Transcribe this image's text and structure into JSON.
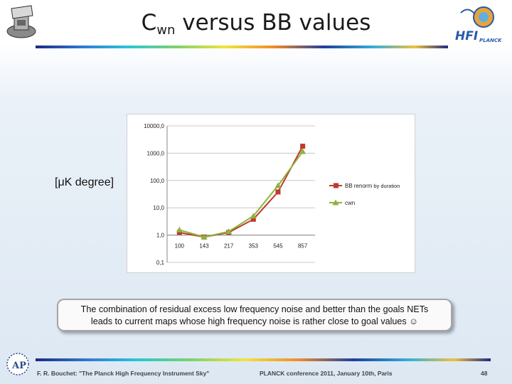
{
  "slide": {
    "title_main": "C",
    "title_sub": "wn",
    "title_rest": " versus BB values",
    "side_label": "[μK degree]",
    "callout_line1": "The combination of residual excess low frequency noise and better than the goals NETs",
    "callout_line2": "leads to current maps whose high frequency noise is rather close to goal values ☺",
    "footer_left": "F. R. Bouchet: \"The Planck High Frequency Instrument Sky\"",
    "footer_center": "PLANCK conference 2011, January 10th, Paris",
    "footer_right": "48",
    "logo_right_text": "HFI",
    "logo_right_sub": "PLANCK"
  },
  "chart_data": {
    "type": "line",
    "yscale": "log",
    "ylim": [
      0.1,
      10000
    ],
    "categories": [
      "100",
      "143",
      "217",
      "353",
      "545",
      "857"
    ],
    "ytick_labels": [
      "10000,0",
      "1000,0",
      "100,0",
      "10,0",
      "1,0",
      "0,1"
    ],
    "ytick_values": [
      10000,
      1000,
      100,
      10,
      1,
      0.1
    ],
    "grid": true,
    "legend_position": "right",
    "series": [
      {
        "name": "BB renorm",
        "name_suffix": "by duration",
        "color": "#c0392b",
        "marker": "square",
        "values": [
          1.25,
          0.85,
          1.25,
          3.8,
          38,
          1800
        ]
      },
      {
        "name": "cwn",
        "color": "#8db33b",
        "marker": "triangle",
        "values": [
          1.55,
          0.85,
          1.35,
          5.0,
          65,
          1150
        ]
      }
    ]
  }
}
